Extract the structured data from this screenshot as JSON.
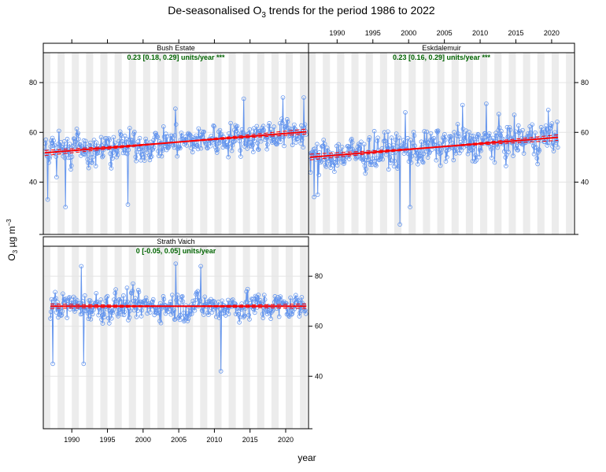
{
  "chart_data": {
    "type": "line",
    "title": "De-seasonalised O3 trends for the period 1986 to 2022",
    "title_parts": {
      "pre": "De-seasonalised O",
      "sub": "3",
      "post": " trends for the period 1986 to 2022"
    },
    "xlabel": "year",
    "ylabel_parts": {
      "pre": "O",
      "sub": "3",
      "mid": " µg m",
      "sup": "−3"
    },
    "xlim": [
      1986,
      2023.2
    ],
    "ylim": [
      19,
      92
    ],
    "x_ticks": [
      1990,
      1995,
      2000,
      2005,
      2010,
      2015,
      2020
    ],
    "y_ticks": [
      40,
      60,
      80
    ],
    "grid": true,
    "alternating_year_shading": true,
    "colors": {
      "series": "#6495ed",
      "trend": "#ff0000",
      "trend_text": "#006400",
      "shade": "#ececec",
      "strip": "#ffffff"
    },
    "panels": [
      {
        "name": "Bush Estate",
        "trend_label": "0.23 [0.18, 0.29] units/year ***",
        "x_start": 1986.2,
        "x_end": 2022.9,
        "mean": 51.8,
        "slope": 0.23,
        "slope_lower": 0.18,
        "slope_upper": 0.29,
        "amplitude": 6.5,
        "extreme_lows": [
          {
            "x": 1986.6,
            "y": 33
          },
          {
            "x": 1987.9,
            "y": 42
          },
          {
            "x": 1989.1,
            "y": 30
          },
          {
            "x": 1997.9,
            "y": 31
          }
        ],
        "extreme_highs": [
          {
            "x": 2004.5,
            "y": 69.5
          },
          {
            "x": 2014.1,
            "y": 73.5
          },
          {
            "x": 2019.6,
            "y": 74
          },
          {
            "x": 2022.5,
            "y": 74
          }
        ]
      },
      {
        "name": "Eskdalemuir",
        "trend_label": "0.23 [0.16, 0.29] units/year ***",
        "x_start": 1986.2,
        "x_end": 2020.9,
        "mean": 50.0,
        "slope": 0.23,
        "slope_lower": 0.16,
        "slope_upper": 0.29,
        "amplitude": 7.5,
        "extreme_lows": [
          {
            "x": 1986.8,
            "y": 34
          },
          {
            "x": 1987.3,
            "y": 35
          },
          {
            "x": 1998.8,
            "y": 23
          },
          {
            "x": 2000.2,
            "y": 30
          }
        ],
        "extreme_highs": [
          {
            "x": 1999.5,
            "y": 68
          },
          {
            "x": 2007.5,
            "y": 71
          },
          {
            "x": 2010.9,
            "y": 71.5
          },
          {
            "x": 2019.5,
            "y": 69
          }
        ]
      },
      {
        "name": "Strath Vaich",
        "trend_label": "0 [-0.05, 0.05] units/year",
        "x_start": 1987.0,
        "x_end": 2022.9,
        "mean": 68.0,
        "slope": 0.0,
        "slope_lower": -0.05,
        "slope_upper": 0.05,
        "amplitude": 6.0,
        "extreme_lows": [
          {
            "x": 1987.3,
            "y": 45
          },
          {
            "x": 1991.7,
            "y": 45
          },
          {
            "x": 2010.9,
            "y": 42
          }
        ],
        "extreme_highs": [
          {
            "x": 1991.3,
            "y": 84
          },
          {
            "x": 2004.6,
            "y": 85
          },
          {
            "x": 2008.1,
            "y": 84
          }
        ]
      }
    ]
  }
}
